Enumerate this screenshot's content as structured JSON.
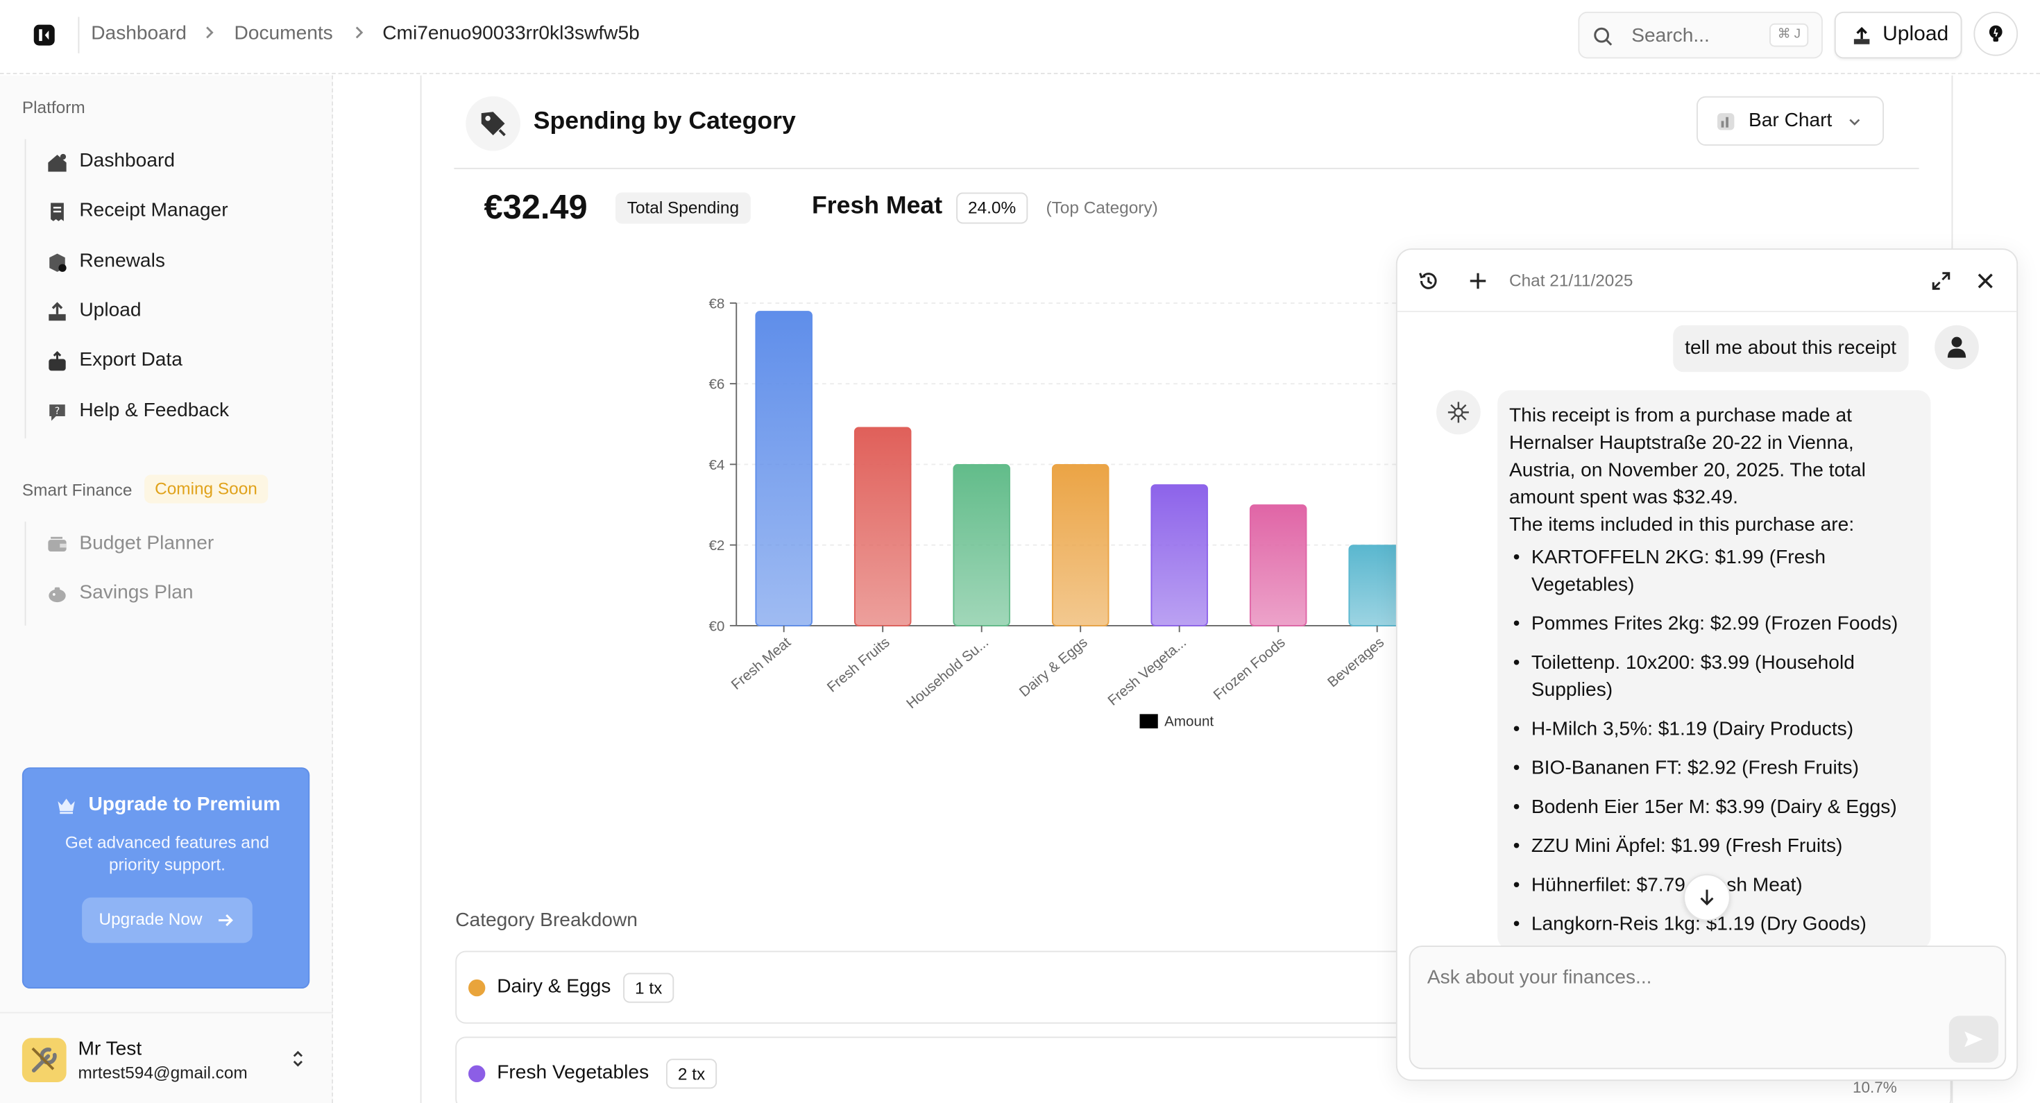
{
  "breadcrumb": {
    "items": [
      "Dashboard",
      "Documents",
      "Cmi7enuo90033rr0kl3swfw5b"
    ]
  },
  "search": {
    "placeholder": "Search...",
    "shortcut": "⌘ J"
  },
  "header": {
    "upload_label": "Upload"
  },
  "sidebar": {
    "platform_label": "Platform",
    "items": [
      {
        "label": "Dashboard",
        "icon": "dashboard-icon"
      },
      {
        "label": "Receipt Manager",
        "icon": "receipt-icon"
      },
      {
        "label": "Renewals",
        "icon": "renewals-icon"
      },
      {
        "label": "Upload",
        "icon": "upload-icon"
      },
      {
        "label": "Export Data",
        "icon": "export-icon"
      },
      {
        "label": "Help & Feedback",
        "icon": "help-icon"
      }
    ],
    "smart_label": "Smart Finance",
    "coming_soon": "Coming Soon",
    "smart_items": [
      {
        "label": "Budget Planner",
        "icon": "budget-icon"
      },
      {
        "label": "Savings Plan",
        "icon": "savings-icon"
      }
    ],
    "premium": {
      "title": "Upgrade to Premium",
      "description": "Get advanced features and priority support.",
      "button": "Upgrade Now"
    },
    "user": {
      "name": "Mr Test",
      "email": "mrtest594@gmail.com"
    }
  },
  "main": {
    "title": "Spending by Category",
    "chart_select": "Bar Chart",
    "total_amount": "€32.49",
    "total_label": "Total Spending",
    "top_category": "Fresh Meat",
    "top_pct": "24.0%",
    "top_note": "(Top Category)",
    "breakdown_title": "Category Breakdown",
    "breakdown": [
      {
        "name": "Dairy & Eggs",
        "tx": "1 tx",
        "color": "#e9a43b"
      },
      {
        "name": "Fresh Vegetables",
        "tx": "2 tx",
        "color": "#8c5ee6"
      }
    ],
    "partial_pct": "10.7%"
  },
  "chart_data": {
    "type": "bar",
    "categories": [
      "Fresh Meat",
      "Fresh Fruits",
      "Household Su...",
      "Dairy & Eggs",
      "Fresh Vegeta...",
      "Frozen Foods",
      "Beverages"
    ],
    "values": [
      7.79,
      4.91,
      3.99,
      3.99,
      3.49,
      2.99,
      1.99
    ],
    "colors": [
      "#5f8eea",
      "#e0605a",
      "#62bc8a",
      "#eba445",
      "#8d63ea",
      "#e065a6",
      "#5ab7cf"
    ],
    "ylim": [
      0,
      8
    ],
    "yticks": [
      0,
      2,
      4,
      6,
      8
    ],
    "ytick_labels": [
      "€0",
      "€2",
      "€4",
      "€6",
      "€8"
    ],
    "legend": "Amount",
    "legend_position": "bottom",
    "grid": true
  },
  "chat": {
    "title": "Chat 21/11/2025",
    "user_message": "tell me about this receipt",
    "bot_intro": "This receipt is from a purchase made at Hernalser Hauptstraße 20-22 in Vienna, Austria, on November 20, 2025. The total amount spent was $32.49.",
    "bot_items_intro": "The items included in this purchase are:",
    "bot_items": [
      "KARTOFFELN 2KG: $1.99 (Fresh Vegetables)",
      "Pommes Frites 2kg: $2.99 (Frozen Foods)",
      "Toilettenp. 10x200: $3.99 (Household Supplies)",
      "H-Milch 3,5%: $1.19 (Dairy Products)",
      "BIO-Bananen FT: $2.92 (Fresh Fruits)",
      "Bodenh Eier 15er M: $3.99 (Dairy & Eggs)",
      "ZZU Mini Äpfel: $1.99 (Fresh Fruits)",
      "Hühnerfilet: $7.79 (Fresh Meat)",
      "Langkorn-Reis 1kg: $1.19 (Dry Goods)"
    ],
    "input_placeholder": "Ask about your finances..."
  }
}
